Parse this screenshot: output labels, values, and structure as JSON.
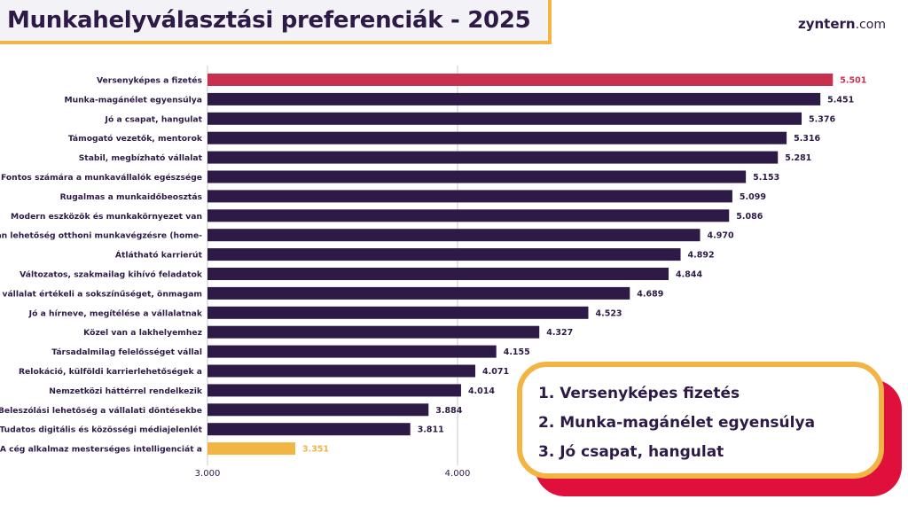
{
  "header": {
    "title": "Munkahelyválasztási preferenciák - 2025",
    "logo_brand": "zyntern",
    "logo_tld": ".com"
  },
  "chart_data": {
    "type": "bar",
    "orientation": "horizontal",
    "categories": [
      "Versenyképes a fizetés",
      "Munka-magánélet egyensúlya",
      "Jó a csapat, hangulat",
      "Támogató vezetők, mentorok",
      "Stabil, megbízható vállalat",
      "Fontos számára a munkavállalók egészsége",
      "Rugalmas a munkaidőbeosztás",
      "Modern eszközök és munkakörnyezet van",
      "Van lehetőség otthoni munkavégzésre (home-",
      "Átlátható karrierút",
      "Változatos, szakmailag kihívó feladatok",
      "A vállalat értékeli a sokszínűséget, önmagam",
      "Jó a hírneve, megítélése a vállalatnak",
      "Közel van a lakhelyemhez",
      "Társadalmilag felelősséget vállal",
      "Relokáció, külföldi karrierlehetőségek a",
      "Nemzetközi háttérrel rendelkezik",
      "Beleszólási lehetőség a vállalati döntésekbe",
      "Tudatos digitális és közösségi médiajelenlét",
      "A cég alkalmaz mesterséges intelligenciát a"
    ],
    "values": [
      5.501,
      5.451,
      5.376,
      5.316,
      5.281,
      5.153,
      5.099,
      5.086,
      4.97,
      4.892,
      4.844,
      4.689,
      4.523,
      4.327,
      4.155,
      4.071,
      4.014,
      3.884,
      3.811,
      3.351
    ],
    "value_labels": [
      "5.501",
      "5.451",
      "5.376",
      "5.316",
      "5.281",
      "5.153",
      "5.099",
      "5.086",
      "4.970",
      "4.892",
      "4.844",
      "4.689",
      "4.523",
      "4.327",
      "4.155",
      "4.071",
      "4.014",
      "3.884",
      "3.811",
      "3.351"
    ],
    "x_ticks": [
      3,
      4
    ],
    "x_tick_labels": [
      "3.000",
      "4.000"
    ],
    "xlim": [
      3,
      5.5
    ],
    "title": "Munkahelyválasztási preferenciák - 2025",
    "xlabel": "",
    "ylabel": "",
    "grid": "vertical",
    "legend": "none",
    "colors": {
      "default_bar": "#2e1a47",
      "highlight_top": "#c8304f",
      "highlight_bottom": "#f2b544",
      "gridline": "#c9c9cf"
    }
  },
  "callout": {
    "items": [
      "1. Versenyképes fizetés",
      "2. Munka-magánélet egyensúlya",
      "3. Jó csapat, hangulat"
    ]
  }
}
